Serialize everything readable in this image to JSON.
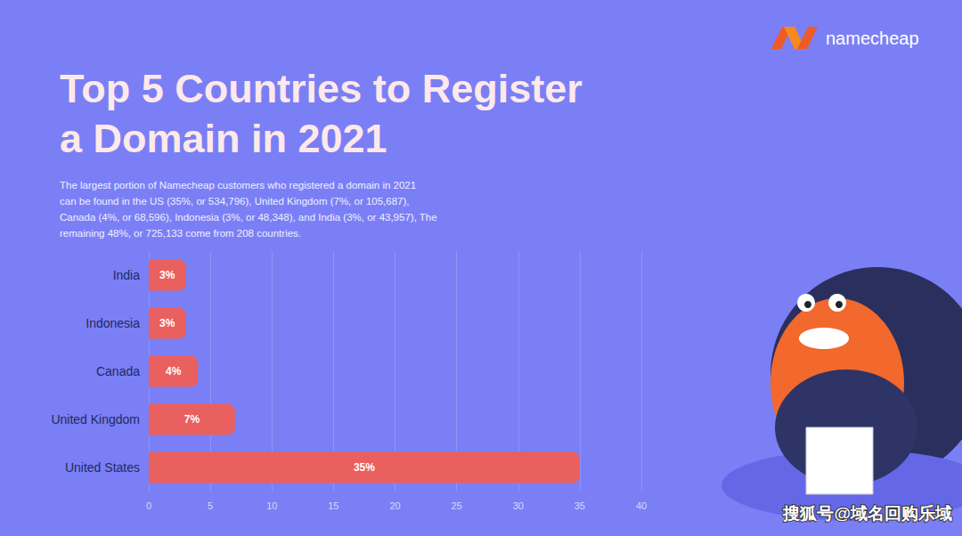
{
  "chart_data": {
    "type": "bar",
    "title": "Top 5 Countries to Register\na Domain in 2021",
    "subtitle": "The largest portion of Namecheap customers who registered a domain in 2021\ncan be found in the US (35%, or 534,796), United Kingdom (7%, or 105,687),\nCanada (4%, or 68,596), Indonesia (3%, or 48,348), and India (3%, or 43,957), The\nremaining 48%, or 725,133 come from 208 countries.",
    "annotations": [
      "namecheap",
      "搜狐号@域名回购乐域"
    ],
    "orientation": "horizontal",
    "categories": [
      "United States",
      "United Kingdom",
      "Canada",
      "Indonesia",
      "India"
    ],
    "values": [
      35,
      7,
      4,
      3,
      3
    ],
    "value_labels": [
      "35%",
      "7%",
      "4%",
      "3%",
      "3%"
    ],
    "data_labels": true,
    "color": "#e9605e",
    "xlim": [
      0,
      40
    ],
    "xticks": [
      0,
      5,
      10,
      15,
      20,
      25,
      30,
      35,
      40
    ],
    "grid": true
  }
}
